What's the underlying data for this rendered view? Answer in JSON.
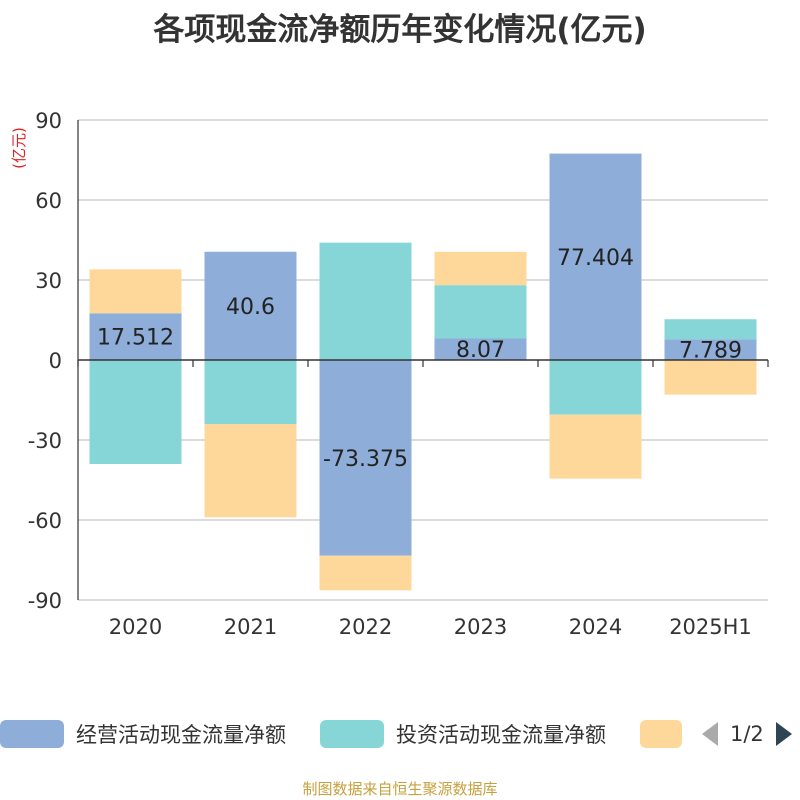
{
  "chart_data": {
    "type": "bar",
    "stacked": true,
    "title": "各项现金流净额历年变化情况(亿元)",
    "unit_label": "(亿元)",
    "categories": [
      "2020",
      "2021",
      "2022",
      "2023",
      "2024",
      "2025H1"
    ],
    "ylim": [
      -90,
      90
    ],
    "yticks": [
      90,
      60,
      30,
      0,
      -30,
      -60,
      -90
    ],
    "grid": true,
    "series": [
      {
        "name": "经营活动现金流量净额",
        "color": "#8eadd9",
        "values": [
          17.512,
          40.6,
          -73.375,
          8.07,
          77.404,
          7.789
        ],
        "labels": [
          "17.512",
          "40.6",
          "-73.375",
          "8.07",
          "77.404",
          "7.789"
        ]
      },
      {
        "name": "投资活动现金流量净额",
        "color": "#86d6d8",
        "values": [
          -39,
          -24,
          44,
          20,
          -20.5,
          7.5
        ]
      },
      {
        "name": "",
        "color": "#fdd89a",
        "values": [
          16.5,
          -35,
          -13,
          12.5,
          -24,
          -13
        ]
      }
    ],
    "legend_position": "bottom"
  },
  "legend": {
    "page": "1/2"
  },
  "footer": "制图数据来自恒生聚源数据库"
}
